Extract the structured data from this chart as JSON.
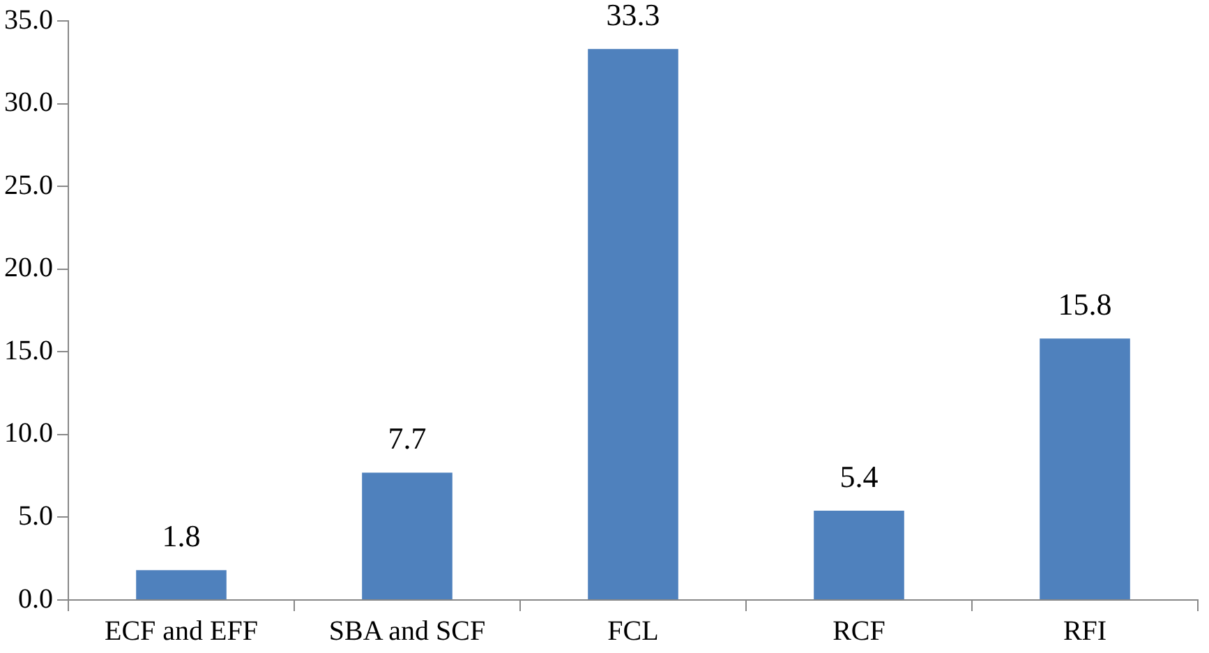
{
  "chart_data": {
    "type": "bar",
    "categories": [
      "ECF and EFF",
      "SBA and SCF",
      "FCL",
      "RCF",
      "RFI"
    ],
    "values": [
      1.8,
      7.7,
      33.3,
      5.4,
      15.8
    ],
    "color": "#4f81bd",
    "ylim": [
      0,
      35
    ],
    "yticks": [
      {
        "value": 0,
        "label": "0.0"
      },
      {
        "value": 5,
        "label": "5.0"
      },
      {
        "value": 10,
        "label": "10.0"
      },
      {
        "value": 15,
        "label": "15.0"
      },
      {
        "value": 20,
        "label": "20.0"
      },
      {
        "value": 25,
        "label": "25.0"
      },
      {
        "value": 30,
        "label": "30.0"
      },
      {
        "value": 35,
        "label": "35.0"
      }
    ],
    "data_labels": true,
    "grid": false,
    "legend": false
  }
}
